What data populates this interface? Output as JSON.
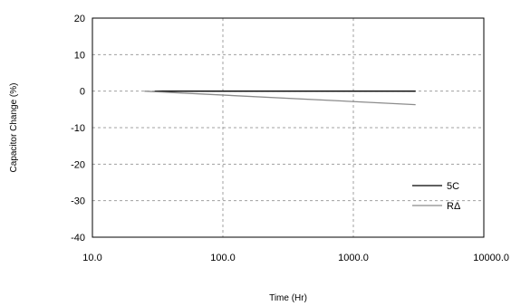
{
  "chart_data": {
    "type": "line",
    "title": "",
    "xlabel": "Time (Hr)",
    "ylabel": "Capacitor Change (%)",
    "xscale": "log",
    "xlim": [
      10,
      10000
    ],
    "ylim": [
      -40,
      20
    ],
    "x_ticks": [
      10,
      100,
      1000,
      10000
    ],
    "x_tick_labels": [
      "10.0",
      "100.0",
      "1000.0",
      "10000.0"
    ],
    "y_ticks": [
      20,
      10,
      0,
      -10,
      -20,
      -30,
      -40
    ],
    "y_tick_labels": [
      "20",
      "10",
      "0",
      "-10",
      "-20",
      "-30",
      "-40"
    ],
    "grid": "dashed",
    "legend_position": "bottom-right",
    "series": [
      {
        "name": "5C",
        "color": "#000000",
        "x": [
          30,
          3000
        ],
        "y": [
          0,
          0
        ]
      },
      {
        "name": "RΔ",
        "color": "#8c8c8c",
        "x": [
          25,
          3000
        ],
        "y": [
          0,
          -3.7
        ]
      }
    ]
  }
}
